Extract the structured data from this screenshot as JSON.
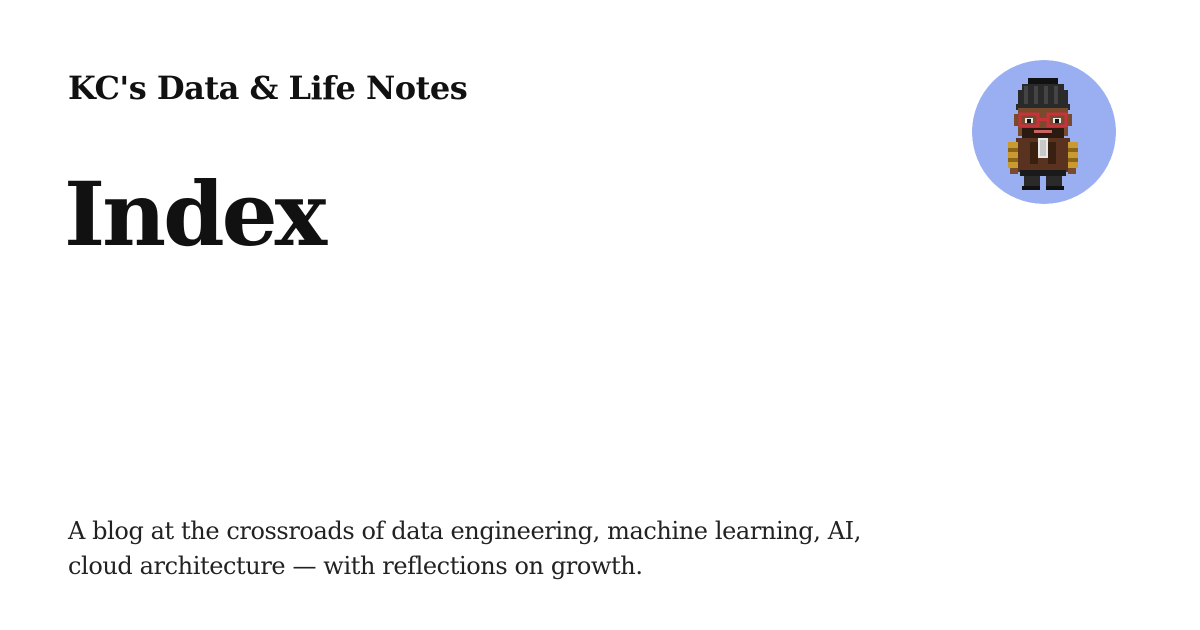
{
  "site": {
    "name": "KC's Data & Life Notes"
  },
  "page": {
    "title": "Index",
    "description": "A blog at the crossroads of data engineering, machine learning, AI, cloud architecture — with reflections on growth."
  },
  "avatar": {
    "icon": "pixel-character-avatar-icon",
    "background_color": "#9aaef2",
    "skin_color": "#7a4a2c",
    "hair_color": "#2a2a2a",
    "jacket_color": "#5a3220",
    "glasses_color": "#c8323c",
    "gold_color": "#c89a30"
  }
}
